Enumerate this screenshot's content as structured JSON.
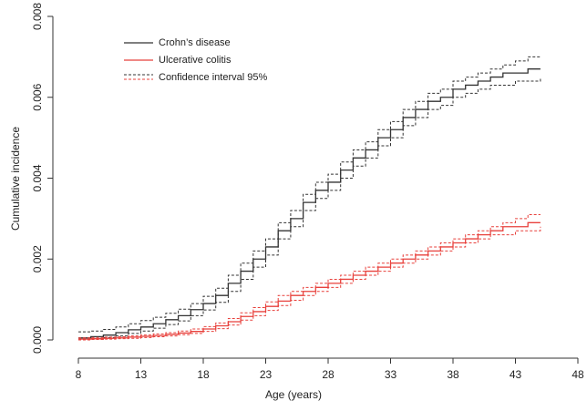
{
  "chart_data": {
    "type": "step-line",
    "x_label": "Age (years)",
    "y_label": "Cumulative incidence",
    "x": [
      8,
      9,
      10,
      11,
      12,
      13,
      14,
      15,
      16,
      17,
      18,
      19,
      20,
      21,
      22,
      23,
      24,
      25,
      26,
      27,
      28,
      29,
      30,
      31,
      32,
      33,
      34,
      35,
      36,
      37,
      38,
      39,
      40,
      41,
      42,
      43,
      44,
      45
    ],
    "series": [
      {
        "name": "Crohn’s disease",
        "color": "#333333",
        "values": [
          5e-05,
          8e-05,
          0.00012,
          0.00018,
          0.00025,
          0.00032,
          0.0004,
          0.0005,
          0.0006,
          0.00075,
          0.0009,
          0.0011,
          0.0014,
          0.0017,
          0.002,
          0.0023,
          0.0027,
          0.003,
          0.0034,
          0.0037,
          0.0039,
          0.0042,
          0.0045,
          0.0047,
          0.005,
          0.0052,
          0.0055,
          0.0057,
          0.0059,
          0.006,
          0.0062,
          0.0063,
          0.0064,
          0.0065,
          0.0066,
          0.0066,
          0.0067,
          0.0067
        ],
        "ci_lower": [
          1e-05,
          3e-05,
          6e-05,
          0.0001,
          0.00016,
          0.00022,
          0.00029,
          0.00038,
          0.00047,
          0.0006,
          0.00074,
          0.00093,
          0.0012,
          0.0015,
          0.0018,
          0.0021,
          0.0025,
          0.0028,
          0.0032,
          0.0035,
          0.0037,
          0.004,
          0.0043,
          0.0045,
          0.0048,
          0.005,
          0.0053,
          0.0055,
          0.0057,
          0.0058,
          0.006,
          0.0061,
          0.0062,
          0.0063,
          0.0063,
          0.0064,
          0.0064,
          0.0065
        ],
        "ci_upper": [
          0.0002,
          0.00022,
          0.00026,
          0.00032,
          0.0004,
          0.00048,
          0.00056,
          0.00066,
          0.00076,
          0.0009,
          0.00108,
          0.00128,
          0.0016,
          0.0019,
          0.0022,
          0.0025,
          0.0029,
          0.0032,
          0.0036,
          0.0039,
          0.0041,
          0.0044,
          0.0047,
          0.0049,
          0.0052,
          0.0054,
          0.0057,
          0.0059,
          0.0061,
          0.0062,
          0.0064,
          0.0065,
          0.0066,
          0.0067,
          0.0068,
          0.0069,
          0.007,
          0.007
        ]
      },
      {
        "name": "Ulcerative colitis",
        "color": "#e8413c",
        "values": [
          2e-05,
          3e-05,
          4e-05,
          5e-05,
          7e-05,
          9e-05,
          0.00011,
          0.00014,
          0.00017,
          0.00021,
          0.00027,
          0.00035,
          0.00045,
          0.00058,
          0.0007,
          0.00083,
          0.00096,
          0.0011,
          0.0012,
          0.0013,
          0.0014,
          0.0015,
          0.0016,
          0.0017,
          0.0018,
          0.0019,
          0.002,
          0.0021,
          0.0022,
          0.0023,
          0.0024,
          0.0025,
          0.0026,
          0.0027,
          0.0028,
          0.0028,
          0.0029,
          0.0029
        ],
        "ci_lower": [
          0,
          1e-05,
          2e-05,
          3e-05,
          4e-05,
          6e-05,
          8e-05,
          0.0001,
          0.00013,
          0.00016,
          0.00021,
          0.00028,
          0.00037,
          0.00049,
          0.0006,
          0.00073,
          0.00085,
          0.00098,
          0.0011,
          0.0012,
          0.0013,
          0.0014,
          0.0015,
          0.0016,
          0.0017,
          0.0018,
          0.0019,
          0.002,
          0.0021,
          0.0022,
          0.0023,
          0.0024,
          0.0025,
          0.0026,
          0.0026,
          0.0027,
          0.0027,
          0.0028
        ],
        "ci_upper": [
          5e-05,
          6e-05,
          7e-05,
          8e-05,
          0.0001,
          0.00012,
          0.00015,
          0.00018,
          0.00022,
          0.00027,
          0.00033,
          0.00042,
          0.00053,
          0.00067,
          0.0008,
          0.00094,
          0.0011,
          0.0012,
          0.0013,
          0.0014,
          0.0015,
          0.0016,
          0.0017,
          0.0018,
          0.0019,
          0.002,
          0.0021,
          0.0022,
          0.0023,
          0.0024,
          0.0025,
          0.0026,
          0.0027,
          0.0028,
          0.0029,
          0.003,
          0.0031,
          0.0031
        ]
      }
    ],
    "ci_label": "Confidence interval 95%",
    "xlim": [
      8,
      48
    ],
    "xticks": [
      8,
      13,
      18,
      23,
      28,
      33,
      38,
      43,
      48
    ],
    "ylim": [
      0,
      0.008
    ],
    "yticks": [
      {
        "value": 0,
        "label": "0.000"
      },
      {
        "value": 0.002,
        "label": "0.002"
      },
      {
        "value": 0.004,
        "label": "0.004"
      },
      {
        "value": 0.006,
        "label": "0.006"
      },
      {
        "value": 0.008,
        "label": "0.008"
      }
    ],
    "legend": "top-left",
    "grid": false
  }
}
